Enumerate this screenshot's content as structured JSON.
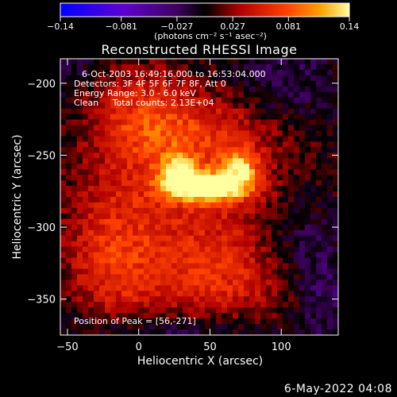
{
  "chart_data": {
    "type": "heatmap",
    "title": "Reconstructed RHESSI Image",
    "xlabel": "Heliocentric X (arcsec)",
    "ylabel": "Heliocentric Y (arcsec)",
    "xlim": [
      -55,
      140
    ],
    "ylim": [
      -375,
      -183
    ],
    "x_ticks": [
      -50,
      0,
      50,
      100
    ],
    "y_ticks": [
      -200,
      -250,
      -300,
      -350
    ],
    "colorbar": {
      "range": [
        -0.14,
        0.14
      ],
      "tick_values": [
        -0.14,
        -0.081,
        -0.027,
        0.027,
        0.081,
        0.14
      ],
      "tick_labels": [
        "−0.14",
        "−0.081",
        "−0.027",
        "0.027",
        "0.081",
        "0.14"
      ],
      "unit_label": "(photons cm⁻² s⁻¹ asec⁻²)",
      "colors": [
        "#0000ff",
        "#8000c0",
        "#000000",
        "#e02000",
        "#ff8000",
        "#ffff40"
      ]
    },
    "annotations": [
      "6-Oct-2003 16:49:16.000 to 16:53:04.000",
      "Detectors: 3F 4F 5F 6F 7F 8F, Att 0",
      "Energy Range: 3.0 - 6.0 keV",
      "Clean     Total counts: 2.13E+04"
    ],
    "peak_label": "Position of Peak = [56,-271]",
    "peak": {
      "x": 56,
      "y": -271,
      "value": 0.14
    },
    "sources": [
      {
        "x": 50,
        "y": -272,
        "value": 0.14,
        "sx": 20,
        "sy": 7
      },
      {
        "x": 28,
        "y": -262,
        "value": 0.09,
        "sx": 9,
        "sy": 9
      },
      {
        "x": 72,
        "y": -258,
        "value": 0.08,
        "sx": 9,
        "sy": 9
      },
      {
        "x": 40,
        "y": -235,
        "value": 0.05,
        "sx": 40,
        "sy": 22
      },
      {
        "x": 40,
        "y": -300,
        "value": 0.05,
        "sx": 50,
        "sy": 40
      },
      {
        "x": 0,
        "y": -220,
        "value": 0.045,
        "sx": 25,
        "sy": 25
      },
      {
        "x": -20,
        "y": -320,
        "value": 0.045,
        "sx": 22,
        "sy": 40
      },
      {
        "x": 60,
        "y": -340,
        "value": 0.035,
        "sx": 45,
        "sy": 20
      },
      {
        "x": 110,
        "y": -310,
        "value": -0.03,
        "sx": 20,
        "sy": 25
      },
      {
        "x": 130,
        "y": -345,
        "value": -0.035,
        "sx": 15,
        "sy": 20
      },
      {
        "x": 100,
        "y": -200,
        "value": -0.025,
        "sx": 25,
        "sy": 18
      },
      {
        "x": 10,
        "y": -372,
        "value": -0.03,
        "sx": 60,
        "sy": 10
      },
      {
        "x": -50,
        "y": -190,
        "value": -0.02,
        "sx": 15,
        "sy": 15
      }
    ]
  },
  "footer": {
    "date": "6-May-2022 04:08"
  }
}
